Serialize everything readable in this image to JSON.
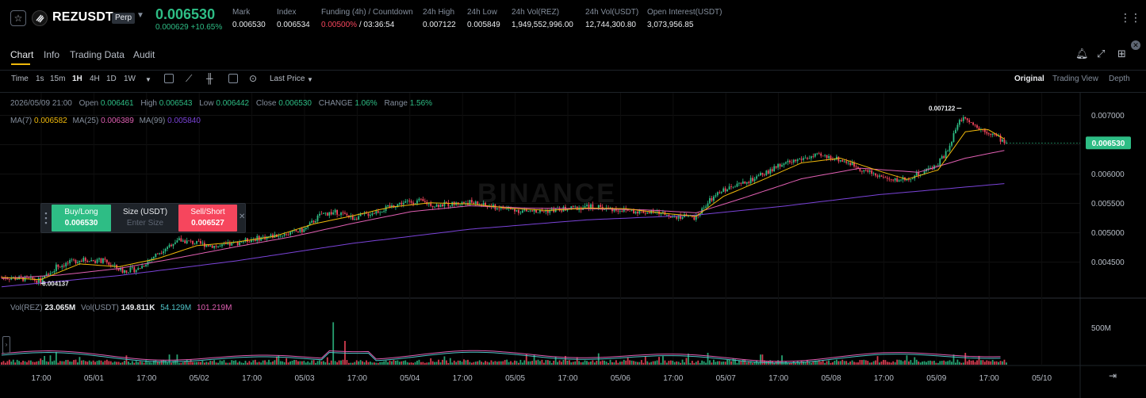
{
  "header": {
    "symbol": "REZUSDT",
    "badge": "Perp",
    "last_price": "0.006530",
    "change_line": "0.000629 +10.65%",
    "stats": [
      {
        "label": "Mark",
        "value": "0.006530"
      },
      {
        "label": "Index",
        "value": "0.006534"
      },
      {
        "label": "Funding (4h) / Countdown",
        "value_red": "0.00500%",
        "value": " / 03:36:54"
      },
      {
        "label": "24h High",
        "value": "0.007122"
      },
      {
        "label": "24h Low",
        "value": "0.005849"
      },
      {
        "label": "24h Vol(REZ)",
        "value": "1,949,552,996.00"
      },
      {
        "label": "24h Vol(USDT)",
        "value": "12,744,300.80"
      },
      {
        "label": "Open Interest(USDT)",
        "value": "3,073,956.85"
      }
    ],
    "icons": {
      "favorite": "star-icon",
      "coin": "rez-logo-icon",
      "more": "more-icon"
    }
  },
  "tabs": [
    "Chart",
    "Info",
    "Trading Data",
    "Audit"
  ],
  "active_tab": "Chart",
  "toolbar": {
    "intervals": [
      "Time",
      "1s",
      "15m",
      "1H",
      "4H",
      "1D",
      "1W"
    ],
    "active_interval": "1H",
    "price_source": "Last Price",
    "views": [
      "Original",
      "Trading View",
      "Depth"
    ],
    "active_view": "Original"
  },
  "ohlc": {
    "date": "2026/05/09 21:00",
    "open_label": "Open",
    "open": "0.006461",
    "high_label": "High",
    "high": "0.006543",
    "low_label": "Low",
    "low": "0.006442",
    "close_label": "Close",
    "close": "0.006530",
    "change_label": "CHANGE",
    "change": "1.06%",
    "range_label": "Range",
    "range": "1.56%"
  },
  "ma": {
    "ma7_label": "MA(7)",
    "ma7": "0.006582",
    "ma25_label": "MA(25)",
    "ma25": "0.006389",
    "ma99_label": "MA(99)",
    "ma99": "0.005840"
  },
  "order_panel": {
    "buy_label": "Buy/Long",
    "buy_price": "0.006530",
    "size_label": "Size (USDT)",
    "size_placeholder": "Enter Size",
    "sell_label": "Sell/Short",
    "sell_price": "0.006527"
  },
  "volume": {
    "vol_rez_label": "Vol(REZ)",
    "vol_rez": "23.065M",
    "vol_usdt_label": "Vol(USDT)",
    "vol_usdt": "149.811K",
    "ma1": "54.129M",
    "ma2": "101.219M",
    "axis_label": "500M"
  },
  "chart_data": {
    "type": "candlestick",
    "watermark": "BINANCE",
    "price_axis": {
      "ticks": [
        "0.007000",
        "0.006500",
        "0.006000",
        "0.005500",
        "0.005000",
        "0.004500"
      ],
      "ylim": [
        0.0039,
        0.00725
      ]
    },
    "time_axis": {
      "ticks": [
        "17:00",
        "05/01",
        "17:00",
        "05/02",
        "17:00",
        "05/03",
        "17:00",
        "05/04",
        "17:00",
        "05/05",
        "17:00",
        "05/06",
        "17:00",
        "05/07",
        "17:00",
        "05/08",
        "17:00",
        "05/09",
        "17:00",
        "05/10"
      ]
    },
    "current_price_label": "0.006530",
    "high_marker": "0.007122",
    "low_marker": "0.004137",
    "close_path": [
      [
        0,
        0.00424
      ],
      [
        14,
        0.00421
      ],
      [
        20,
        0.00418
      ],
      [
        28,
        0.00442
      ],
      [
        40,
        0.00454
      ],
      [
        52,
        0.00452
      ],
      [
        62,
        0.00435
      ],
      [
        70,
        0.00438
      ],
      [
        80,
        0.00465
      ],
      [
        90,
        0.00488
      ],
      [
        100,
        0.00482
      ],
      [
        112,
        0.00476
      ],
      [
        124,
        0.00486
      ],
      [
        134,
        0.00492
      ],
      [
        146,
        0.00498
      ],
      [
        155,
        0.00505
      ],
      [
        164,
        0.00532
      ],
      [
        172,
        0.00535
      ],
      [
        180,
        0.00525
      ],
      [
        188,
        0.00532
      ],
      [
        196,
        0.0054
      ],
      [
        205,
        0.00551
      ],
      [
        214,
        0.00554
      ],
      [
        222,
        0.00547
      ],
      [
        231,
        0.00549
      ],
      [
        240,
        0.00552
      ],
      [
        249,
        0.00545
      ],
      [
        258,
        0.00541
      ],
      [
        267,
        0.00537
      ],
      [
        276,
        0.00536
      ],
      [
        285,
        0.00539
      ],
      [
        294,
        0.00542
      ],
      [
        302,
        0.00545
      ],
      [
        311,
        0.00541
      ],
      [
        320,
        0.00538
      ],
      [
        329,
        0.00536
      ],
      [
        338,
        0.00533
      ],
      [
        347,
        0.00528
      ],
      [
        356,
        0.00526
      ],
      [
        362,
        0.00552
      ],
      [
        370,
        0.00573
      ],
      [
        380,
        0.00583
      ],
      [
        390,
        0.00599
      ],
      [
        400,
        0.00616
      ],
      [
        410,
        0.00626
      ],
      [
        418,
        0.00631
      ],
      [
        426,
        0.00628
      ],
      [
        434,
        0.0062
      ],
      [
        442,
        0.00606
      ],
      [
        450,
        0.00597
      ],
      [
        456,
        0.00588
      ],
      [
        464,
        0.00593
      ],
      [
        472,
        0.00602
      ],
      [
        480,
        0.00618
      ],
      [
        486,
        0.00645
      ],
      [
        490,
        0.00688
      ],
      [
        494,
        0.00698
      ],
      [
        500,
        0.00681
      ],
      [
        508,
        0.00668
      ],
      [
        515,
        0.00653
      ]
    ],
    "ma7_path": [
      [
        0,
        0.00424
      ],
      [
        20,
        0.0042
      ],
      [
        40,
        0.00447
      ],
      [
        60,
        0.00442
      ],
      [
        80,
        0.00456
      ],
      [
        100,
        0.00478
      ],
      [
        120,
        0.00484
      ],
      [
        140,
        0.00494
      ],
      [
        160,
        0.00515
      ],
      [
        180,
        0.00529
      ],
      [
        200,
        0.00544
      ],
      [
        220,
        0.00551
      ],
      [
        240,
        0.00549
      ],
      [
        260,
        0.00542
      ],
      [
        280,
        0.00538
      ],
      [
        300,
        0.00542
      ],
      [
        320,
        0.00541
      ],
      [
        340,
        0.00533
      ],
      [
        356,
        0.00528
      ],
      [
        370,
        0.00562
      ],
      [
        390,
        0.0059
      ],
      [
        410,
        0.00619
      ],
      [
        430,
        0.00627
      ],
      [
        450,
        0.00605
      ],
      [
        464,
        0.00591
      ],
      [
        480,
        0.00607
      ],
      [
        494,
        0.00672
      ],
      [
        505,
        0.00677
      ],
      [
        515,
        0.00658
      ]
    ],
    "ma25_path": [
      [
        0,
        0.00422
      ],
      [
        30,
        0.00428
      ],
      [
        60,
        0.00439
      ],
      [
        90,
        0.00457
      ],
      [
        120,
        0.00476
      ],
      [
        150,
        0.00494
      ],
      [
        180,
        0.00516
      ],
      [
        210,
        0.00536
      ],
      [
        240,
        0.00546
      ],
      [
        270,
        0.00542
      ],
      [
        300,
        0.00541
      ],
      [
        330,
        0.00539
      ],
      [
        356,
        0.00534
      ],
      [
        380,
        0.00559
      ],
      [
        410,
        0.00592
      ],
      [
        440,
        0.0061
      ],
      [
        470,
        0.00603
      ],
      [
        494,
        0.00627
      ],
      [
        515,
        0.00641
      ]
    ],
    "ma99_path": [
      [
        0,
        0.00408
      ],
      [
        60,
        0.00427
      ],
      [
        120,
        0.00452
      ],
      [
        180,
        0.00482
      ],
      [
        240,
        0.00506
      ],
      [
        300,
        0.00522
      ],
      [
        356,
        0.0053
      ],
      [
        400,
        0.00545
      ],
      [
        450,
        0.00565
      ],
      [
        515,
        0.00584
      ]
    ],
    "ma7_color": "#f0b90b",
    "ma25_color": "#e05fb2",
    "ma99_color": "#7a43d8",
    "up_color": "#2ebd85",
    "down_color": "#f6465d"
  }
}
